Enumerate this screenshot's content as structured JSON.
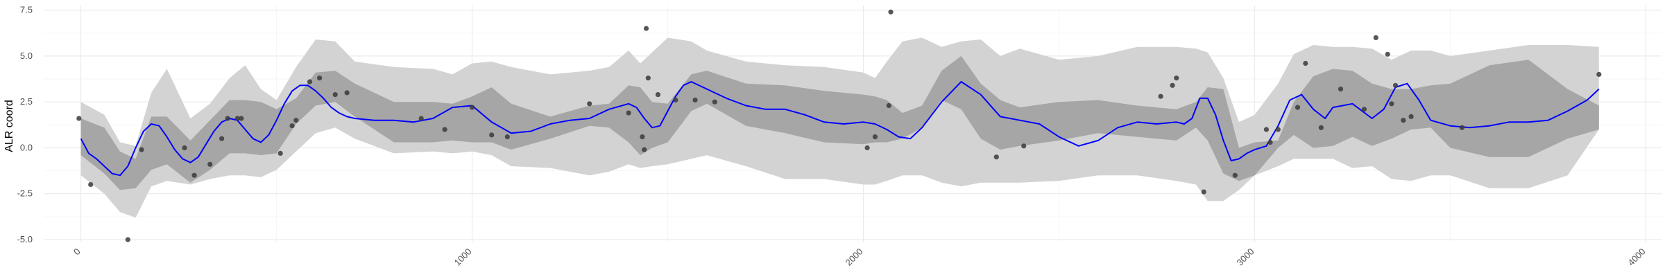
{
  "chart_data": {
    "type": "line",
    "title": "",
    "xlabel": "",
    "ylabel": "ALR coord",
    "xlim": [
      -95,
      4040
    ],
    "ylim": [
      -5.15,
      7.75
    ],
    "x_ticks": [
      0,
      1000,
      2000,
      3000,
      4000
    ],
    "x_tick_labels": [
      "0",
      "1000",
      "2000",
      "3000",
      "4000"
    ],
    "y_ticks": [
      -5.0,
      -2.5,
      0.0,
      2.5,
      5.0,
      7.5
    ],
    "y_tick_labels": [
      "-5.0",
      "-2.5",
      "0.0",
      "2.5",
      "5.0",
      "7.5"
    ],
    "grid": true,
    "legend": "none",
    "colors": {
      "mean_line": "#0000ff",
      "inner_band": "#a6a6a6",
      "outer_band": "#d3d3d3",
      "points": "#3a3a3a",
      "grid": "#ebebeb"
    },
    "series": [
      {
        "type": "line",
        "x": [
          0,
          20,
          40,
          60,
          80,
          100,
          120,
          140,
          160,
          180,
          200,
          220,
          240,
          260,
          280,
          300,
          320,
          340,
          360,
          380,
          400,
          420,
          440,
          460,
          480,
          500,
          520,
          540,
          560,
          580,
          600,
          620,
          640,
          660,
          680,
          700,
          750,
          800,
          850,
          900,
          950,
          1000,
          1050,
          1100,
          1150,
          1200,
          1250,
          1300,
          1350,
          1400,
          1420,
          1440,
          1460,
          1480,
          1500,
          1520,
          1540,
          1560,
          1600,
          1650,
          1700,
          1750,
          1800,
          1850,
          1900,
          1950,
          2000,
          2030,
          2060,
          2090,
          2120,
          2150,
          2200,
          2250,
          2300,
          2350,
          2400,
          2450,
          2500,
          2550,
          2600,
          2650,
          2700,
          2750,
          2800,
          2820,
          2840,
          2860,
          2880,
          2900,
          2920,
          2940,
          2960,
          2980,
          3000,
          3030,
          3060,
          3090,
          3120,
          3150,
          3180,
          3200,
          3250,
          3300,
          3330,
          3360,
          3390,
          3420,
          3450,
          3500,
          3550,
          3600,
          3650,
          3700,
          3750,
          3800,
          3850,
          3880
        ],
        "y": [
          0.5,
          -0.3,
          -0.6,
          -1.0,
          -1.4,
          -1.5,
          -1.0,
          0.0,
          0.9,
          1.3,
          1.2,
          0.6,
          -0.1,
          -0.6,
          -0.8,
          -0.5,
          0.2,
          0.9,
          1.4,
          1.6,
          1.5,
          1.0,
          0.5,
          0.3,
          0.7,
          1.5,
          2.4,
          3.1,
          3.4,
          3.4,
          3.1,
          2.7,
          2.2,
          1.9,
          1.7,
          1.6,
          1.5,
          1.5,
          1.4,
          1.6,
          2.2,
          2.3,
          1.4,
          0.8,
          0.9,
          1.3,
          1.5,
          1.6,
          2.1,
          2.4,
          2.2,
          1.6,
          1.1,
          1.2,
          2.0,
          2.8,
          3.4,
          3.6,
          3.2,
          2.7,
          2.3,
          2.1,
          2.1,
          1.8,
          1.4,
          1.3,
          1.4,
          1.3,
          1.0,
          0.6,
          0.5,
          1.1,
          2.5,
          3.6,
          2.9,
          1.7,
          1.5,
          1.3,
          0.6,
          0.1,
          0.4,
          1.1,
          1.4,
          1.3,
          1.4,
          1.3,
          1.6,
          2.7,
          2.7,
          1.8,
          0.4,
          -0.7,
          -0.6,
          -0.3,
          -0.1,
          0.1,
          1.2,
          2.6,
          2.9,
          2.1,
          1.6,
          2.2,
          2.4,
          1.6,
          2.1,
          3.3,
          3.5,
          2.6,
          1.5,
          1.2,
          1.1,
          1.2,
          1.4,
          1.4,
          1.5,
          2.0,
          2.6,
          3.2
        ]
      },
      {
        "type": "band",
        "x": [
          0,
          60,
          100,
          140,
          180,
          220,
          280,
          330,
          380,
          420,
          460,
          500,
          550,
          600,
          650,
          700,
          800,
          900,
          950,
          1000,
          1050,
          1100,
          1200,
          1300,
          1350,
          1400,
          1430,
          1460,
          1500,
          1560,
          1600,
          1700,
          1800,
          1900,
          2000,
          2030,
          2060,
          2100,
          2150,
          2200,
          2250,
          2300,
          2350,
          2400,
          2500,
          2600,
          2700,
          2800,
          2850,
          2880,
          2920,
          2960,
          3000,
          3060,
          3100,
          3150,
          3200,
          3250,
          3300,
          3350,
          3400,
          3450,
          3500,
          3600,
          3700,
          3800,
          3880
        ],
        "lower": [
          -0.4,
          -1.4,
          -2.3,
          -2.2,
          -1.2,
          -0.9,
          -1.9,
          -1.2,
          -0.3,
          -0.3,
          -0.4,
          -0.3,
          1.3,
          2.3,
          2.5,
          1.7,
          0.3,
          0.3,
          0.4,
          0.3,
          0.3,
          -0.1,
          0.5,
          1.2,
          1.1,
          0.3,
          -0.4,
          0.0,
          0.3,
          2.0,
          2.4,
          1.2,
          0.8,
          0.3,
          0.2,
          0.3,
          0.3,
          0.5,
          1.1,
          2.6,
          2.1,
          0.5,
          -0.1,
          0.1,
          0.4,
          0.8,
          0.6,
          0.4,
          1.1,
          0.4,
          -1.4,
          -1.8,
          -1.5,
          0.0,
          0.7,
          0.0,
          0.1,
          0.6,
          0.1,
          0.5,
          1.0,
          1.1,
          0.0,
          -0.5,
          -0.5,
          0.5,
          1.0
        ],
        "upper": [
          1.6,
          1.1,
          -0.2,
          -0.6,
          1.7,
          1.7,
          0.4,
          1.5,
          2.6,
          2.6,
          2.5,
          2.1,
          2.7,
          4.1,
          4.2,
          3.5,
          2.5,
          2.5,
          2.4,
          2.8,
          3.3,
          2.4,
          1.7,
          2.3,
          2.4,
          3.4,
          3.3,
          2.5,
          2.4,
          4.0,
          4.2,
          3.5,
          3.4,
          3.1,
          2.9,
          2.8,
          2.6,
          1.9,
          2.3,
          4.2,
          5.0,
          3.5,
          2.6,
          2.2,
          2.5,
          2.6,
          2.3,
          2.1,
          2.5,
          3.3,
          3.2,
          0.0,
          0.3,
          0.4,
          2.5,
          3.9,
          4.3,
          4.2,
          3.5,
          3.2,
          3.2,
          3.4,
          3.5,
          4.5,
          4.8,
          3.2,
          2.3
        ]
      },
      {
        "type": "band",
        "x": [
          0,
          60,
          100,
          140,
          180,
          220,
          280,
          330,
          380,
          420,
          460,
          500,
          550,
          600,
          650,
          700,
          800,
          900,
          950,
          1000,
          1050,
          1100,
          1200,
          1300,
          1350,
          1400,
          1430,
          1460,
          1500,
          1560,
          1600,
          1700,
          1800,
          1900,
          2000,
          2030,
          2060,
          2100,
          2150,
          2200,
          2250,
          2300,
          2350,
          2400,
          2500,
          2600,
          2700,
          2800,
          2850,
          2880,
          2920,
          2960,
          3000,
          3060,
          3100,
          3150,
          3200,
          3250,
          3300,
          3350,
          3400,
          3450,
          3500,
          3600,
          3700,
          3800,
          3880
        ],
        "lower": [
          -1.5,
          -2.5,
          -3.5,
          -3.8,
          -2.1,
          -1.8,
          -2.0,
          -1.7,
          -1.5,
          -1.5,
          -1.6,
          -1.2,
          -0.2,
          0.8,
          1.1,
          0.5,
          -0.3,
          -0.2,
          -0.3,
          -0.2,
          -0.4,
          -1.0,
          -1.1,
          -1.5,
          -1.3,
          -0.9,
          -1.1,
          -1.0,
          -0.9,
          -0.6,
          -0.4,
          -1.0,
          -1.7,
          -1.7,
          -2.0,
          -2.0,
          -1.8,
          -1.5,
          -1.5,
          -1.9,
          -2.1,
          -1.9,
          -1.9,
          -1.9,
          -1.8,
          -1.5,
          -1.5,
          -1.8,
          -2.0,
          -2.9,
          -2.9,
          -2.3,
          -1.5,
          -1.0,
          -0.6,
          -0.6,
          -0.6,
          -1.1,
          -1.0,
          -1.7,
          -1.8,
          -1.5,
          -1.5,
          -2.2,
          -2.2,
          -1.5,
          1.0
        ],
        "upper": [
          2.5,
          1.8,
          0.3,
          0.1,
          3.0,
          4.3,
          1.6,
          2.4,
          3.8,
          4.5,
          3.2,
          2.6,
          4.4,
          5.9,
          5.8,
          4.7,
          4.4,
          4.3,
          4.0,
          4.6,
          4.7,
          4.4,
          4.0,
          4.2,
          4.4,
          5.3,
          4.6,
          5.2,
          6.0,
          5.8,
          5.3,
          4.7,
          4.5,
          4.4,
          4.1,
          3.8,
          4.7,
          5.8,
          6.0,
          5.5,
          5.8,
          5.9,
          5.0,
          5.4,
          4.8,
          5.0,
          5.5,
          5.5,
          5.4,
          5.2,
          3.8,
          1.4,
          1.8,
          3.5,
          5.1,
          5.6,
          5.5,
          5.5,
          5.4,
          4.8,
          5.3,
          5.3,
          5.0,
          5.3,
          5.6,
          5.6,
          5.5
        ]
      },
      {
        "type": "scatter",
        "x": [
          -5,
          25,
          120,
          155,
          265,
          290,
          330,
          360,
          375,
          400,
          410,
          510,
          540,
          550,
          585,
          610,
          650,
          680,
          870,
          930,
          1000,
          1050,
          1090,
          1300,
          1400,
          1435,
          1440,
          1445,
          1450,
          1475,
          1520,
          1570,
          1620,
          2010,
          2030,
          2065,
          2070,
          2340,
          2410,
          2760,
          2790,
          2800,
          2870,
          2950,
          3030,
          3040,
          3060,
          3110,
          3130,
          3170,
          3220,
          3280,
          3310,
          3340,
          3350,
          3360,
          3380,
          3400,
          3530,
          3880
        ],
        "y": [
          1.6,
          -2.0,
          -5.0,
          -0.1,
          0.0,
          -1.5,
          -0.9,
          0.5,
          1.6,
          1.6,
          1.6,
          -0.3,
          1.2,
          1.5,
          3.6,
          3.8,
          2.9,
          3.0,
          1.6,
          1.0,
          2.2,
          0.7,
          0.6,
          2.4,
          1.9,
          0.6,
          -0.1,
          6.5,
          3.8,
          2.9,
          2.6,
          2.6,
          2.5,
          0.0,
          0.6,
          2.3,
          7.4,
          -0.5,
          0.1,
          2.8,
          3.4,
          3.8,
          -2.4,
          -1.5,
          1.0,
          0.3,
          1.0,
          2.2,
          4.6,
          1.1,
          3.2,
          2.1,
          6.0,
          5.1,
          2.4,
          3.4,
          1.5,
          1.7,
          1.1,
          4.0
        ]
      }
    ]
  }
}
